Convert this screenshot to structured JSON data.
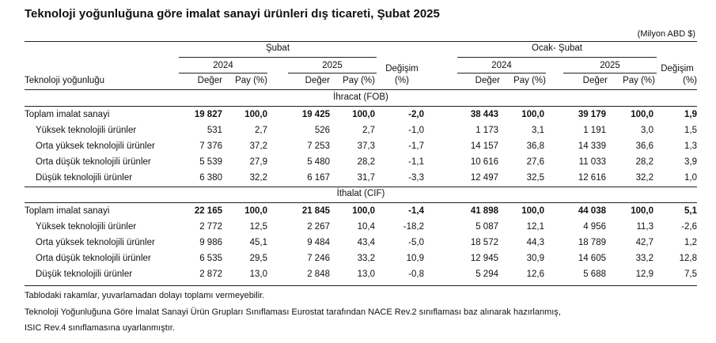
{
  "title": "Teknoloji yoğunluğuna göre imalat sanayi ürünleri dış ticareti, Şubat 2025",
  "unit": "(Milyon ABD $)",
  "header": {
    "period_feb": "Şubat",
    "period_jan_feb": "Ocak- Şubat",
    "year_2024": "2024",
    "year_2025": "2025",
    "change": "Değişim",
    "change_pct": "(%)",
    "value": "Değer",
    "share": "Pay (%)",
    "row_label": "Teknoloji yoğunluğu"
  },
  "sections": [
    {
      "title": "İhracat (FOB)",
      "rows": [
        {
          "label": "Toplam imalat sanayi",
          "total": true,
          "cells": [
            "19 827",
            "100,0",
            "19 425",
            "100,0",
            "-2,0",
            "38 443",
            "100,0",
            "39 179",
            "100,0",
            "1,9"
          ]
        },
        {
          "label": "Yüksek teknolojili ürünler",
          "total": false,
          "cells": [
            "531",
            "2,7",
            "526",
            "2,7",
            "-1,0",
            "1 173",
            "3,1",
            "1 191",
            "3,0",
            "1,5"
          ]
        },
        {
          "label": "Orta yüksek teknolojili ürünler",
          "total": false,
          "cells": [
            "7 376",
            "37,2",
            "7 253",
            "37,3",
            "-1,7",
            "14 157",
            "36,8",
            "14 339",
            "36,6",
            "1,3"
          ]
        },
        {
          "label": "Orta düşük teknolojili ürünler",
          "total": false,
          "cells": [
            "5 539",
            "27,9",
            "5 480",
            "28,2",
            "-1,1",
            "10 616",
            "27,6",
            "11 033",
            "28,2",
            "3,9"
          ]
        },
        {
          "label": "Düşük teknolojili ürünler",
          "total": false,
          "cells": [
            "6 380",
            "32,2",
            "6 167",
            "31,7",
            "-3,3",
            "12 497",
            "32,5",
            "12 616",
            "32,2",
            "1,0"
          ]
        }
      ]
    },
    {
      "title": "İthalat (CIF)",
      "rows": [
        {
          "label": "Toplam imalat sanayi",
          "total": true,
          "cells": [
            "22 165",
            "100,0",
            "21 845",
            "100,0",
            "-1,4",
            "41 898",
            "100,0",
            "44 038",
            "100,0",
            "5,1"
          ]
        },
        {
          "label": "Yüksek teknolojili ürünler",
          "total": false,
          "cells": [
            "2 772",
            "12,5",
            "2 267",
            "10,4",
            "-18,2",
            "5 087",
            "12,1",
            "4 956",
            "11,3",
            "-2,6"
          ]
        },
        {
          "label": "Orta yüksek teknolojili ürünler",
          "total": false,
          "cells": [
            "9 986",
            "45,1",
            "9 484",
            "43,4",
            "-5,0",
            "18 572",
            "44,3",
            "18 789",
            "42,7",
            "1,2"
          ]
        },
        {
          "label": "Orta düşük teknolojili ürünler",
          "total": false,
          "cells": [
            "6 535",
            "29,5",
            "7 246",
            "33,2",
            "10,9",
            "12 945",
            "30,9",
            "14 605",
            "33,2",
            "12,8"
          ]
        },
        {
          "label": "Düşük teknolojili ürünler",
          "total": false,
          "cells": [
            "2 872",
            "13,0",
            "2 848",
            "13,0",
            "-0,8",
            "5 294",
            "12,6",
            "5 688",
            "12,9",
            "7,5"
          ]
        }
      ]
    }
  ],
  "footnotes": [
    "Tablodaki rakamlar, yuvarlamadan dolayı toplamı vermeyebilir.",
    "Teknoloji Yoğunluğuna Göre İmalat Sanayi Ürün Grupları Sınıflaması Eurostat tarafından NACE Rev.2 sınıflaması baz alınarak hazırlanmış,",
    "ISIC Rev.4 sınıflamasına uyarlanmıştır."
  ]
}
